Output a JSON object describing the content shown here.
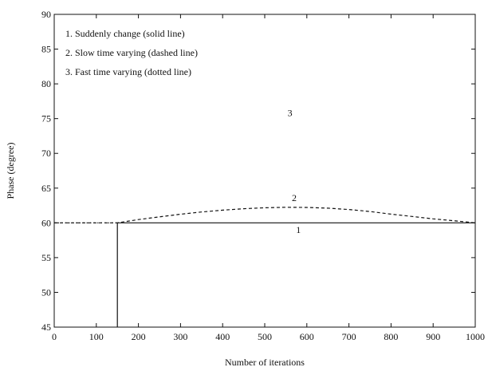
{
  "chart_data": {
    "type": "line",
    "title": "",
    "xlabel": "Number of iterations",
    "ylabel": "Phase (degree)",
    "xlim": [
      0,
      1000
    ],
    "ylim": [
      45,
      90
    ],
    "x_ticks": [
      0,
      100,
      200,
      300,
      400,
      500,
      600,
      700,
      800,
      900,
      1000
    ],
    "y_ticks": [
      45,
      50,
      55,
      60,
      65,
      70,
      75,
      80,
      85,
      90
    ],
    "grid": false,
    "legend": {
      "placement": "top-left",
      "entries": [
        "1. Suddenly change (solid line)",
        "2. Slow time varying (dashed line)",
        "3. Fast time varying (dotted line)"
      ]
    },
    "series": [
      {
        "label": "1",
        "style": "solid",
        "label_at": [
          580,
          59
        ],
        "x": [
          150,
          150,
          1000
        ],
        "y": [
          45,
          60,
          60
        ]
      },
      {
        "label": "2",
        "style": "dashed",
        "label_at": [
          570,
          63.6
        ],
        "x": [
          0,
          150,
          200,
          250,
          300,
          350,
          400,
          450,
          500,
          550,
          600,
          650,
          700,
          750,
          800,
          850,
          900,
          950,
          1000
        ],
        "y": [
          60,
          60,
          60.48,
          60.86,
          61.24,
          61.56,
          61.83,
          62.04,
          62.17,
          62.24,
          62.22,
          62.12,
          61.92,
          61.63,
          61.25,
          60.92,
          60.58,
          60.3,
          60
        ]
      },
      {
        "label": "3",
        "style": "dotted",
        "label_at": [
          560,
          75.8
        ],
        "x": [
          0,
          150
        ],
        "y": [
          60,
          60
        ]
      }
    ]
  }
}
